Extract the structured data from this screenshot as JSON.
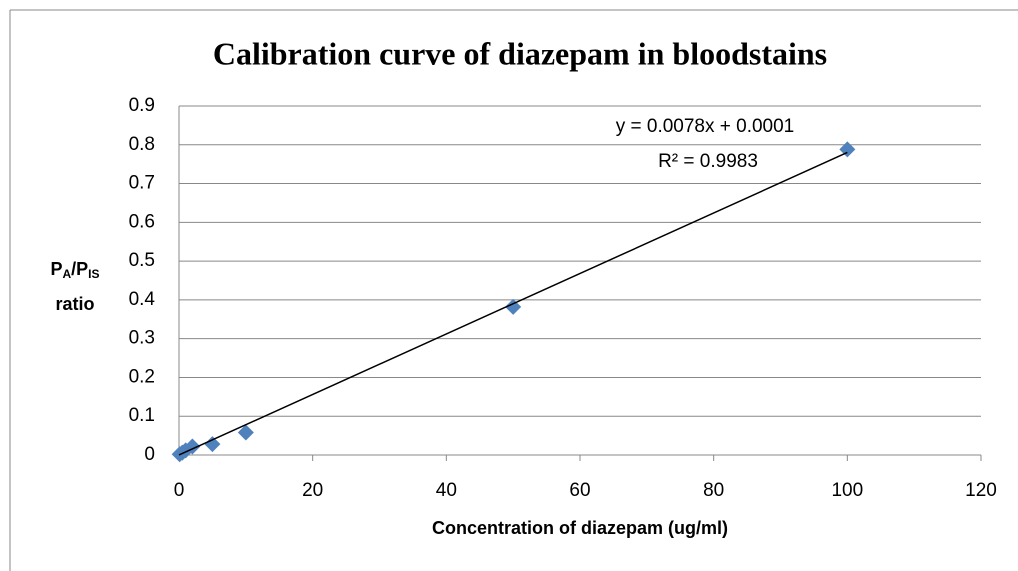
{
  "chart_data": {
    "type": "scatter",
    "title": "Calibration curve of diazepam in bloodstains",
    "xlabel": "Concentration of diazepam (ug/ml)",
    "ylabel": [
      {
        "text": "P"
      },
      {
        "text": "A",
        "sub": true
      },
      {
        "text": "/P"
      },
      {
        "text": "IS",
        "sub": true
      },
      {
        "text": "ratio",
        "newline": true
      }
    ],
    "series": [
      {
        "color": "#4f81bd",
        "x": [
          0.1,
          0.5,
          1,
          2,
          5,
          10,
          50,
          100
        ],
        "values": [
          0.002,
          0.006,
          0.012,
          0.022,
          0.028,
          0.058,
          0.382,
          0.788
        ]
      }
    ],
    "trendline": {
      "equation": "y = 0.0078x + 0.0001",
      "r_squared": "R² = 0.9983",
      "slope": 0.0078,
      "intercept": 0.0001,
      "x": [
        0,
        100
      ],
      "color": "#000000"
    },
    "xlim": [
      0,
      120
    ],
    "xticks": [
      0,
      20,
      40,
      60,
      80,
      100,
      120
    ],
    "ylim": [
      0,
      0.9
    ],
    "yticks": [
      0,
      0.1,
      0.2,
      0.3,
      0.4,
      0.5,
      0.6,
      0.7,
      0.8,
      0.9
    ],
    "grid": true
  }
}
